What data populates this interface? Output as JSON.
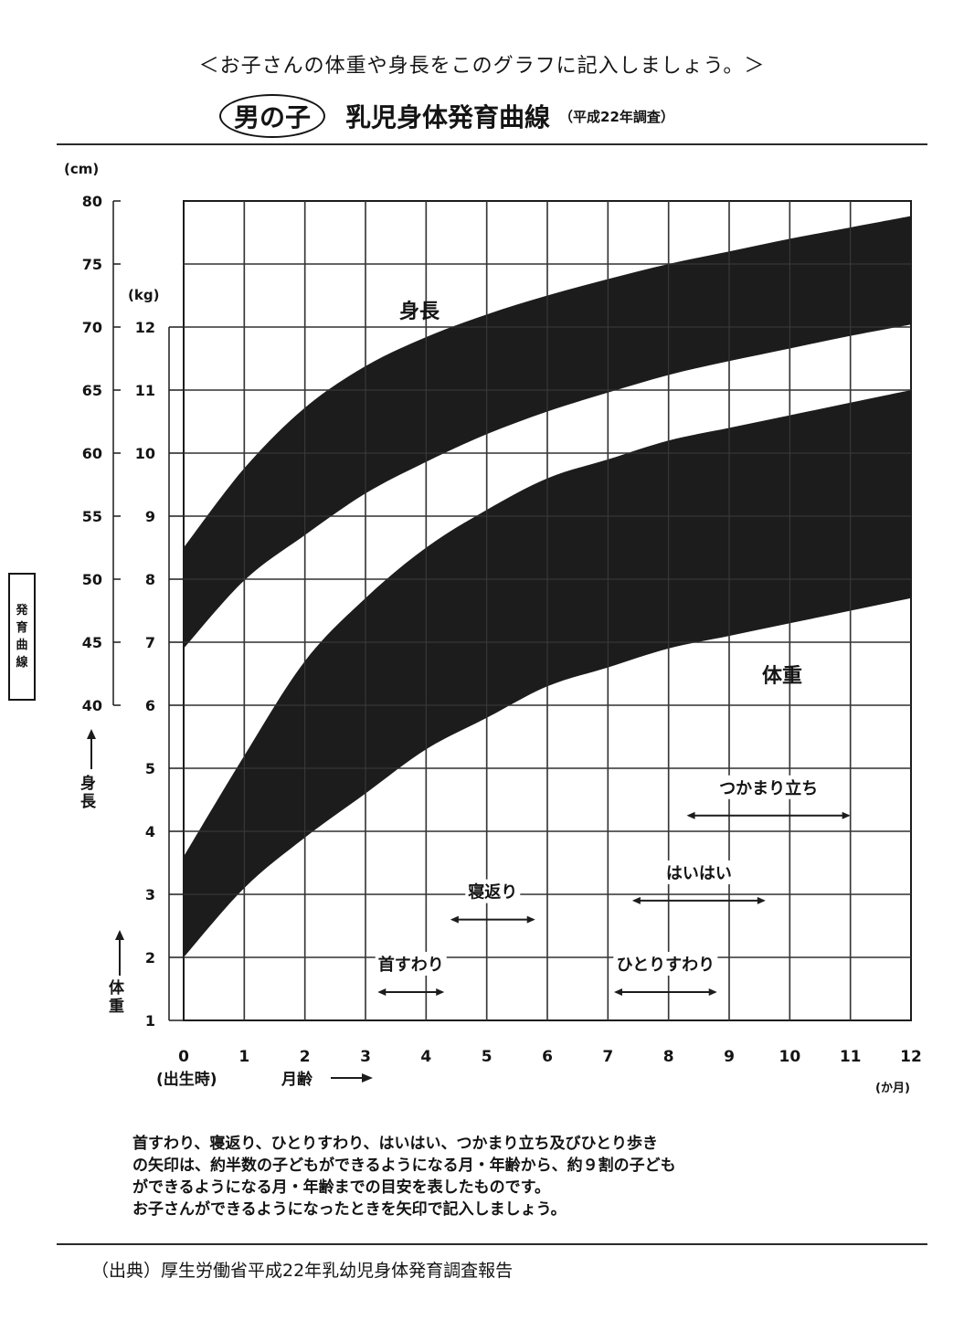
{
  "header": {
    "instruction": "＜お子さんの体重や身長をこのグラフに記入しましょう。＞",
    "boy_label": "男の子",
    "title": "乳児身体発育曲線",
    "survey_note": "（平成22年調査）"
  },
  "side_box": [
    "発",
    "育",
    "曲",
    "線"
  ],
  "height_axis_label": [
    "身",
    "長"
  ],
  "weight_axis_label": [
    "体",
    "重"
  ],
  "cm_unit": "(cm)",
  "kg_unit": "(kg)",
  "month_unit": "(か月)",
  "birth_label": "(出生時)",
  "age_label": "月齢",
  "footnote": [
    "首すわり、寝返り、ひとりすわり、はいはい、つかまり立ち及びひとり歩き",
    "の矢印は、約半数の子どもができるようになる月・年齢から、約９割の子ども",
    "ができるようになる月・年齢までの目安を表したものです。",
    "お子さんができるようになったときを矢印で記入しましょう。"
  ],
  "source": "（出典）厚生労働省平成22年乳幼児身体発育調査報告",
  "colors": {
    "band": "#1c1c1c",
    "grid": "#1c1c1c",
    "background": "#ffffff"
  },
  "chart_data": {
    "type": "area",
    "title": "乳児身体発育曲線",
    "x_ticks": [
      "0",
      "1",
      "2",
      "3",
      "4",
      "5",
      "6",
      "7",
      "8",
      "9",
      "10",
      "11",
      "12"
    ],
    "xlim": [
      0,
      12
    ],
    "height_ticks": [
      "80",
      "75",
      "70",
      "65",
      "60",
      "55",
      "50",
      "45",
      "40"
    ],
    "weight_ticks": [
      "12",
      "11",
      "10",
      "9",
      "8",
      "7",
      "6",
      "5",
      "4",
      "3",
      "2",
      "1"
    ],
    "height_axis": {
      "unit": "cm",
      "ylim": [
        40,
        80
      ]
    },
    "weight_axis": {
      "unit": "kg",
      "ylim": [
        1,
        12
      ]
    },
    "grid": true,
    "series": [
      {
        "name": "身長",
        "axis": "height",
        "x": [
          0,
          1,
          2,
          3,
          4,
          5,
          6,
          7,
          8,
          9,
          10,
          11,
          12
        ],
        "upper": [
          52.5,
          58.8,
          63.6,
          66.9,
          69.2,
          71.0,
          72.5,
          73.8,
          75.0,
          76.0,
          77.0,
          77.9,
          78.8
        ],
        "lower": [
          44.5,
          49.9,
          53.5,
          56.8,
          59.3,
          61.5,
          63.3,
          64.8,
          66.2,
          67.3,
          68.3,
          69.3,
          70.2
        ]
      },
      {
        "name": "体重",
        "axis": "weight",
        "x": [
          0,
          1,
          2,
          3,
          4,
          5,
          6,
          7,
          8,
          9,
          10,
          11,
          12
        ],
        "upper": [
          3.6,
          5.2,
          6.7,
          7.7,
          8.5,
          9.1,
          9.6,
          9.9,
          10.2,
          10.4,
          10.6,
          10.8,
          11.0
        ],
        "lower": [
          2.0,
          3.1,
          3.9,
          4.6,
          5.3,
          5.8,
          6.3,
          6.6,
          6.9,
          7.1,
          7.3,
          7.5,
          7.7
        ]
      }
    ],
    "milestones": [
      {
        "label": "首すわり",
        "from": 3.2,
        "to": 4.3,
        "level": 1.45
      },
      {
        "label": "寝返り",
        "from": 4.4,
        "to": 5.8,
        "level": 2.6
      },
      {
        "label": "ひとりすわり",
        "from": 7.1,
        "to": 8.8,
        "level": 1.45
      },
      {
        "label": "はいはい",
        "from": 7.4,
        "to": 9.6,
        "level": 2.9
      },
      {
        "label": "つかまり立ち",
        "from": 8.3,
        "to": 11.0,
        "level": 4.25
      }
    ]
  }
}
